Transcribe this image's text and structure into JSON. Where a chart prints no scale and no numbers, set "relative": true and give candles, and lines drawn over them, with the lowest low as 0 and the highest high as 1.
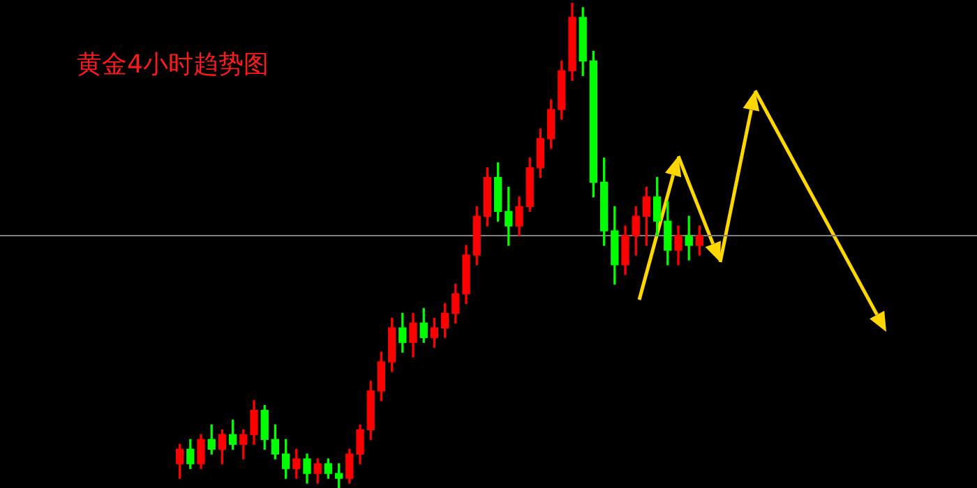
{
  "chart_data": {
    "type": "candlestick",
    "title": "黄金4小时趋势图",
    "relative": true,
    "categories": [
      null,
      null,
      null,
      null,
      null,
      null,
      null,
      null,
      null,
      null,
      null,
      null,
      null,
      null,
      null,
      null,
      null,
      null,
      null,
      null,
      null,
      null,
      null,
      null,
      null,
      null,
      null,
      null,
      null,
      null,
      null,
      null,
      null,
      null,
      null,
      null,
      null,
      null,
      null,
      null,
      null,
      null,
      null,
      null,
      null,
      null,
      null,
      null,
      null,
      null
    ],
    "ohlc": [
      [
        0.05,
        0.09,
        0.02,
        0.08
      ],
      [
        0.08,
        0.1,
        0.04,
        0.05
      ],
      [
        0.05,
        0.11,
        0.04,
        0.1
      ],
      [
        0.1,
        0.13,
        0.07,
        0.08
      ],
      [
        0.08,
        0.12,
        0.05,
        0.11
      ],
      [
        0.11,
        0.14,
        0.08,
        0.09
      ],
      [
        0.09,
        0.12,
        0.06,
        0.11
      ],
      [
        0.11,
        0.18,
        0.09,
        0.16
      ],
      [
        0.16,
        0.17,
        0.08,
        0.1
      ],
      [
        0.1,
        0.13,
        0.06,
        0.07
      ],
      [
        0.07,
        0.1,
        0.02,
        0.04
      ],
      [
        0.04,
        0.08,
        0.02,
        0.06
      ],
      [
        0.06,
        0.07,
        0.01,
        0.03
      ],
      [
        0.03,
        0.06,
        0.01,
        0.05
      ],
      [
        0.05,
        0.06,
        0.02,
        0.03
      ],
      [
        0.03,
        0.05,
        0,
        0.02
      ],
      [
        0.02,
        0.08,
        0.01,
        0.07
      ],
      [
        0.07,
        0.13,
        0.05,
        0.12
      ],
      [
        0.12,
        0.22,
        0.1,
        0.2
      ],
      [
        0.2,
        0.28,
        0.18,
        0.26
      ],
      [
        0.26,
        0.35,
        0.24,
        0.33
      ],
      [
        0.33,
        0.36,
        0.28,
        0.3
      ],
      [
        0.3,
        0.36,
        0.27,
        0.34
      ],
      [
        0.34,
        0.37,
        0.3,
        0.31
      ],
      [
        0.31,
        0.35,
        0.29,
        0.33
      ],
      [
        0.33,
        0.38,
        0.31,
        0.36
      ],
      [
        0.36,
        0.42,
        0.34,
        0.4
      ],
      [
        0.4,
        0.5,
        0.38,
        0.48
      ],
      [
        0.48,
        0.58,
        0.46,
        0.56
      ],
      [
        0.56,
        0.66,
        0.54,
        0.64
      ],
      [
        0.64,
        0.67,
        0.55,
        0.57
      ],
      [
        0.57,
        0.62,
        0.5,
        0.54
      ],
      [
        0.54,
        0.6,
        0.52,
        0.58
      ],
      [
        0.58,
        0.68,
        0.57,
        0.66
      ],
      [
        0.66,
        0.74,
        0.64,
        0.72
      ],
      [
        0.72,
        0.8,
        0.7,
        0.78
      ],
      [
        0.78,
        0.88,
        0.76,
        0.86
      ],
      [
        0.86,
        1,
        0.84,
        0.97
      ],
      [
        0.97,
        0.99,
        0.85,
        0.88
      ],
      [
        0.88,
        0.9,
        0.6,
        0.63
      ],
      [
        0.63,
        0.68,
        0.5,
        0.53
      ],
      [
        0.53,
        0.58,
        0.42,
        0.46
      ],
      [
        0.46,
        0.54,
        0.44,
        0.52
      ],
      [
        0.52,
        0.58,
        0.48,
        0.56
      ],
      [
        0.56,
        0.62,
        0.5,
        0.6
      ],
      [
        0.6,
        0.64,
        0.52,
        0.55
      ],
      [
        0.55,
        0.59,
        0.46,
        0.49
      ],
      [
        0.49,
        0.54,
        0.46,
        0.52
      ],
      [
        0.52,
        0.56,
        0.47,
        0.5
      ],
      [
        0.5,
        0.54,
        0.48,
        0.52
      ]
    ],
    "colors": [
      "#ff0000",
      "#00ff00",
      "#ff0000",
      "#00ff00",
      "#ff0000",
      "#00ff00",
      "#ff0000",
      "#ff0000",
      "#00ff00",
      "#00ff00",
      "#00ff00",
      "#ff0000",
      "#00ff00",
      "#ff0000",
      "#00ff00",
      "#00ff00",
      "#ff0000",
      "#ff0000",
      "#ff0000",
      "#ff0000",
      "#ff0000",
      "#00ff00",
      "#ff0000",
      "#00ff00",
      "#ff0000",
      "#ff0000",
      "#ff0000",
      "#ff0000",
      "#ff0000",
      "#ff0000",
      "#00ff00",
      "#00ff00",
      "#ff0000",
      "#ff0000",
      "#ff0000",
      "#ff0000",
      "#ff0000",
      "#ff0000",
      "#00ff00",
      "#00ff00",
      "#00ff00",
      "#00ff00",
      "#ff0000",
      "#ff0000",
      "#ff0000",
      "#00ff00",
      "#00ff00",
      "#ff0000",
      "#00ff00",
      "#ff0000"
    ],
    "ref_lines": [
      {
        "axis": "y",
        "value": 0.52,
        "color": "#808080"
      }
    ]
  }
}
